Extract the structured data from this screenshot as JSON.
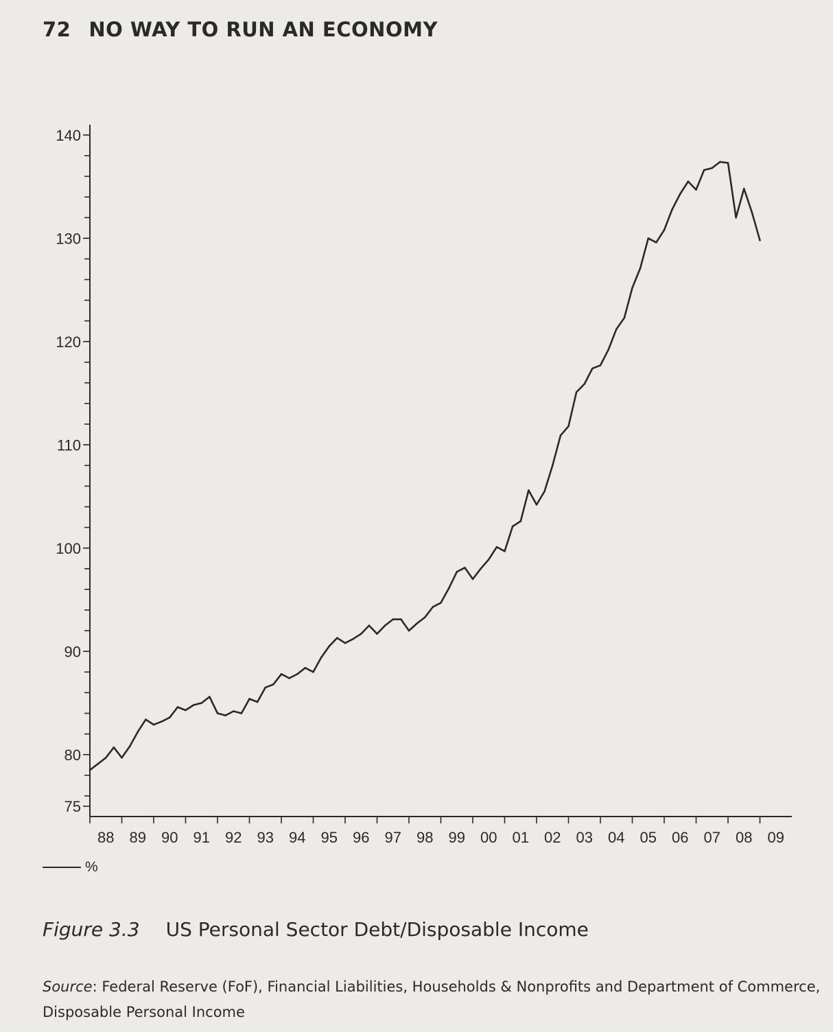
{
  "header": {
    "page_number": "72",
    "book_title": "NO WAY TO RUN AN ECONOMY"
  },
  "caption": {
    "figure_label": "Figure 3.3",
    "title": "US Personal Sector Debt/Disposable Income"
  },
  "source": {
    "label": "Source",
    "text": ": Federal Reserve (FoF), Financial Liabilities, Households & Nonprofits and Department of Commerce, Disposable Personal Income"
  },
  "legend": {
    "series_label": "%"
  },
  "chart_data": {
    "type": "line",
    "title": "US Personal Sector Debt/Disposable Income",
    "xlabel": "",
    "ylabel": "",
    "ylim": [
      74,
      141
    ],
    "xlim": [
      "1988Q1",
      "2009Q4"
    ],
    "grid": false,
    "legend_position": "bottom-left",
    "y_ticks": [
      75,
      80,
      90,
      100,
      110,
      120,
      130,
      140
    ],
    "x_tick_labels": [
      "88",
      "89",
      "90",
      "91",
      "92",
      "93",
      "94",
      "95",
      "96",
      "97",
      "98",
      "99",
      "00",
      "01",
      "02",
      "03",
      "04",
      "05",
      "06",
      "07",
      "08",
      "09"
    ],
    "series": [
      {
        "name": "%",
        "color": "#2a2a2a",
        "start": "1988Q1",
        "frequency": "quarterly",
        "values": [
          78.5,
          79.1,
          79.7,
          80.7,
          79.7,
          80.8,
          82.2,
          83.4,
          82.9,
          83.2,
          83.6,
          84.6,
          84.3,
          84.8,
          85.0,
          85.6,
          84.0,
          83.8,
          84.2,
          84.0,
          85.4,
          85.1,
          86.5,
          86.8,
          87.8,
          87.4,
          87.8,
          88.4,
          88.0,
          89.4,
          90.5,
          91.3,
          90.8,
          91.2,
          91.7,
          92.5,
          91.7,
          92.5,
          93.1,
          93.1,
          92.0,
          92.7,
          93.3,
          94.3,
          94.7,
          96.1,
          97.7,
          98.1,
          97.0,
          98.0,
          98.9,
          100.1,
          99.7,
          102.1,
          102.6,
          105.6,
          104.2,
          105.5,
          108.0,
          110.9,
          111.8,
          115.1,
          115.9,
          117.4,
          117.7,
          119.2,
          121.2,
          122.3,
          125.2,
          127.1,
          130.0,
          129.6,
          130.8,
          132.8,
          134.3,
          135.5,
          134.7,
          136.6,
          136.8,
          137.4,
          137.3,
          132.0,
          134.8,
          132.5,
          129.8
        ]
      }
    ]
  }
}
